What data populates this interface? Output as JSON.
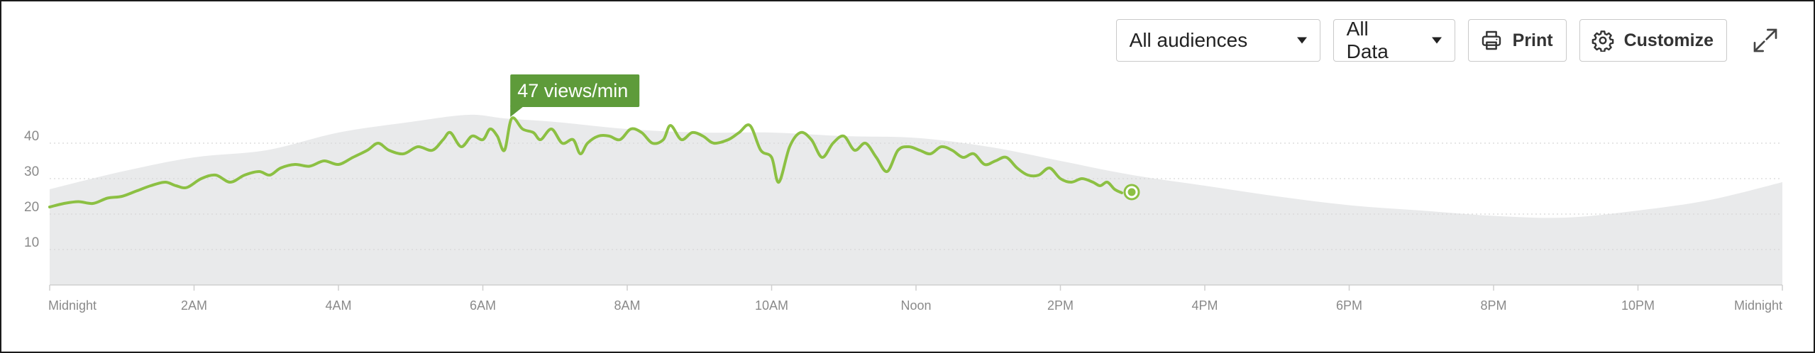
{
  "toolbar": {
    "audience_select": {
      "value": "All audiences"
    },
    "data_select": {
      "value": "All Data"
    },
    "print_label": "Print",
    "customize_label": "Customize"
  },
  "icons": [
    "chevron-down-icon",
    "printer-icon",
    "gear-icon",
    "expand-icon"
  ],
  "colors": {
    "line": "#8cc043",
    "area": "#e9eaeb",
    "tooltip": "#5e9b3a",
    "axis": "#cfcfcf",
    "grid": "#d8d8d8"
  },
  "chart_data": {
    "type": "area",
    "ylim": [
      0,
      50
    ],
    "y_ticks": [
      10,
      20,
      30,
      40
    ],
    "x_hours": [
      0,
      24
    ],
    "x_ticks": [
      {
        "hour": 0,
        "label": "Midnight"
      },
      {
        "hour": 2,
        "label": "2AM"
      },
      {
        "hour": 4,
        "label": "4AM"
      },
      {
        "hour": 6,
        "label": "6AM"
      },
      {
        "hour": 8,
        "label": "8AM"
      },
      {
        "hour": 10,
        "label": "10AM"
      },
      {
        "hour": 12,
        "label": "Noon"
      },
      {
        "hour": 14,
        "label": "2PM"
      },
      {
        "hour": 16,
        "label": "4PM"
      },
      {
        "hour": 18,
        "label": "6PM"
      },
      {
        "hour": 20,
        "label": "8PM"
      },
      {
        "hour": 22,
        "label": "10PM"
      },
      {
        "hour": 24,
        "label": "Midnight"
      }
    ],
    "grid": true,
    "tooltip": {
      "label": "47 views/min",
      "hour": 6.4
    },
    "series": [
      {
        "role": "typical",
        "points": [
          [
            0,
            27
          ],
          [
            1,
            32
          ],
          [
            2,
            36
          ],
          [
            3,
            38
          ],
          [
            4,
            43
          ],
          [
            5,
            46
          ],
          [
            5.8,
            48
          ],
          [
            6.3,
            47
          ],
          [
            7,
            46
          ],
          [
            8,
            44
          ],
          [
            9,
            43
          ],
          [
            10,
            43
          ],
          [
            11,
            42
          ],
          [
            12,
            41.5
          ],
          [
            13,
            39
          ],
          [
            14,
            35
          ],
          [
            15,
            31
          ],
          [
            16,
            28
          ],
          [
            17,
            25
          ],
          [
            18,
            22.5
          ],
          [
            19,
            21
          ],
          [
            20,
            19.5
          ],
          [
            21,
            19
          ],
          [
            22,
            21
          ],
          [
            23,
            24
          ],
          [
            24,
            29
          ]
        ]
      },
      {
        "role": "today",
        "points": [
          [
            0,
            22
          ],
          [
            0.2,
            23
          ],
          [
            0.4,
            23.5
          ],
          [
            0.6,
            23
          ],
          [
            0.8,
            24.5
          ],
          [
            1,
            25
          ],
          [
            1.2,
            26.5
          ],
          [
            1.4,
            28
          ],
          [
            1.6,
            29
          ],
          [
            1.75,
            28
          ],
          [
            1.9,
            27.5
          ],
          [
            2.1,
            30
          ],
          [
            2.3,
            31
          ],
          [
            2.5,
            29
          ],
          [
            2.7,
            31
          ],
          [
            2.9,
            32
          ],
          [
            3.05,
            31
          ],
          [
            3.2,
            33
          ],
          [
            3.4,
            34
          ],
          [
            3.6,
            33.5
          ],
          [
            3.8,
            35
          ],
          [
            4,
            34
          ],
          [
            4.2,
            36
          ],
          [
            4.4,
            38
          ],
          [
            4.55,
            40
          ],
          [
            4.7,
            38
          ],
          [
            4.9,
            37
          ],
          [
            5.1,
            39
          ],
          [
            5.3,
            38
          ],
          [
            5.45,
            41
          ],
          [
            5.55,
            43
          ],
          [
            5.7,
            39
          ],
          [
            5.85,
            42
          ],
          [
            6,
            41
          ],
          [
            6.1,
            44
          ],
          [
            6.2,
            42
          ],
          [
            6.3,
            38
          ],
          [
            6.4,
            47
          ],
          [
            6.55,
            44
          ],
          [
            6.7,
            43
          ],
          [
            6.8,
            41
          ],
          [
            6.95,
            44
          ],
          [
            7.1,
            40
          ],
          [
            7.25,
            41
          ],
          [
            7.35,
            37
          ],
          [
            7.45,
            40
          ],
          [
            7.6,
            42
          ],
          [
            7.75,
            42
          ],
          [
            7.9,
            41
          ],
          [
            8.05,
            44
          ],
          [
            8.2,
            43
          ],
          [
            8.35,
            40
          ],
          [
            8.5,
            41
          ],
          [
            8.6,
            45
          ],
          [
            8.75,
            41
          ],
          [
            8.9,
            43
          ],
          [
            9.05,
            42
          ],
          [
            9.2,
            40
          ],
          [
            9.4,
            41
          ],
          [
            9.55,
            43
          ],
          [
            9.7,
            45
          ],
          [
            9.85,
            38
          ],
          [
            10,
            36
          ],
          [
            10.1,
            29
          ],
          [
            10.25,
            39
          ],
          [
            10.4,
            43
          ],
          [
            10.55,
            41
          ],
          [
            10.7,
            36
          ],
          [
            10.85,
            40
          ],
          [
            11,
            42
          ],
          [
            11.15,
            38
          ],
          [
            11.3,
            40
          ],
          [
            11.45,
            36
          ],
          [
            11.6,
            32
          ],
          [
            11.75,
            38
          ],
          [
            11.9,
            39
          ],
          [
            12.05,
            38
          ],
          [
            12.2,
            37
          ],
          [
            12.35,
            39
          ],
          [
            12.5,
            38
          ],
          [
            12.65,
            36
          ],
          [
            12.8,
            37
          ],
          [
            12.95,
            34
          ],
          [
            13.1,
            35
          ],
          [
            13.25,
            36
          ],
          [
            13.4,
            33
          ],
          [
            13.55,
            31
          ],
          [
            13.7,
            31
          ],
          [
            13.85,
            33
          ],
          [
            14,
            30
          ],
          [
            14.15,
            29
          ],
          [
            14.3,
            30
          ],
          [
            14.45,
            29
          ],
          [
            14.55,
            28
          ],
          [
            14.65,
            29
          ],
          [
            14.75,
            27
          ],
          [
            14.85,
            26
          ]
        ]
      }
    ]
  }
}
